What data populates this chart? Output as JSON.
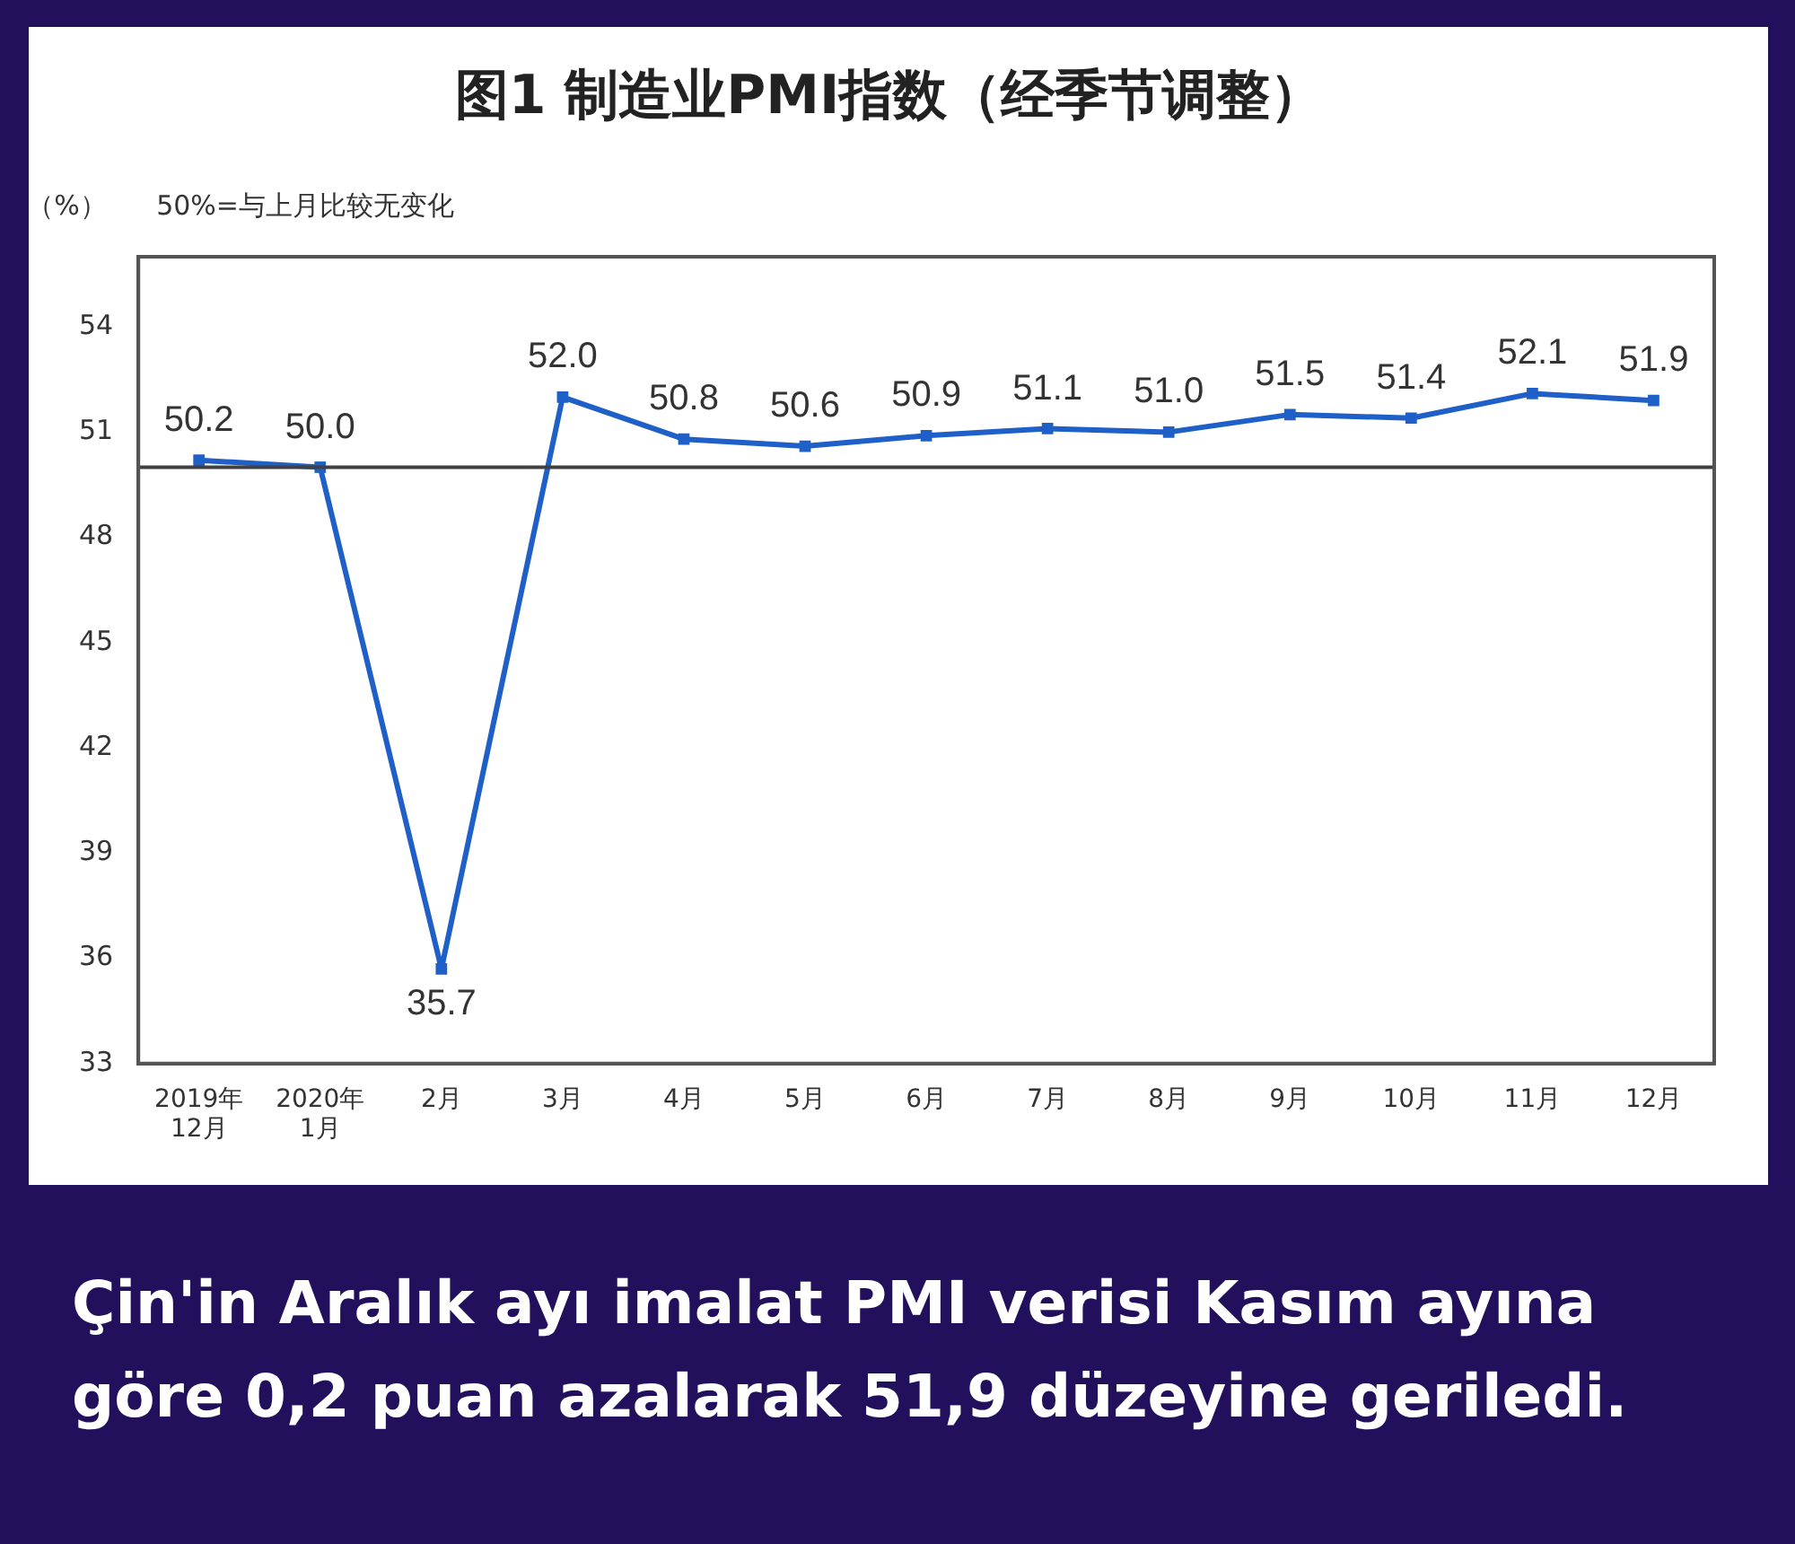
{
  "chart_data": {
    "type": "line",
    "title": "图1 制造业PMI指数（经季节调整）",
    "ylabel": "（%）",
    "categories": [
      "2019年\n12月",
      "2020年\n1月",
      "2月",
      "3月",
      "4月",
      "5月",
      "6月",
      "7月",
      "8月",
      "9月",
      "10月",
      "11月",
      "12月"
    ],
    "series": [
      {
        "color": "#1f5fc8",
        "values": [
          50.2,
          50.0,
          35.7,
          52.0,
          50.8,
          50.6,
          50.9,
          51.1,
          51.0,
          51.5,
          51.4,
          52.1,
          51.9
        ],
        "value_labels": [
          "50.2",
          "50.0",
          "35.7",
          "52.0",
          "50.8",
          "50.6",
          "50.9",
          "51.1",
          "51.0",
          "51.5",
          "51.4",
          "52.1",
          "51.9"
        ]
      }
    ],
    "ylim": [
      33,
      56
    ],
    "yticks": [
      33,
      36,
      39,
      42,
      45,
      48,
      51,
      54
    ],
    "ref_lines": [
      {
        "axis": "y",
        "value": 50,
        "color": "#404040"
      }
    ],
    "annotations": [
      "50%=与上月比较无变化",
      "Çin'in Aralık ayı imalat PMI verisi Kasım ayına göre 0,2 puan azalarak 51,9 düzeyine geriledi."
    ],
    "marker": "square",
    "line_style": "solid",
    "grid": false,
    "legend": false
  }
}
